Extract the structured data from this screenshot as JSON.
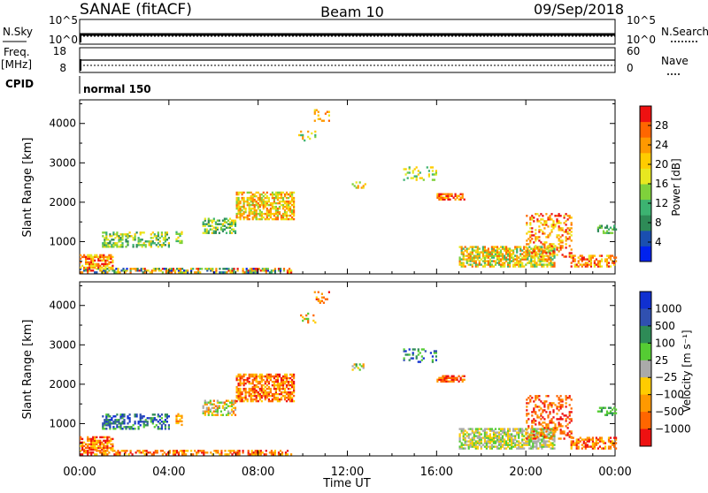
{
  "header": {
    "station": "SANAE (fitACF)",
    "beam": "Beam 10",
    "date": "09/Sep/2018"
  },
  "params": {
    "nsky_label": "N.Sky",
    "nsky_top": "10^5",
    "nsky_bottom": "10^0",
    "nsearch_label": "N.Search",
    "nsearch_top": "10^5",
    "nsearch_bottom": "10^0",
    "freq_label_1": "Freq.",
    "freq_label_2": "[MHz]",
    "freq_top": "18",
    "freq_bottom": "8",
    "nave_label": "Nave",
    "nave_top": "60",
    "nave_bottom": "0",
    "cpid_label": "CPID",
    "cpid_value": "normal 150"
  },
  "colors": {
    "power": [
      "#0022ee",
      "#1a4fb0",
      "#2e8b57",
      "#3cb371",
      "#7fd13b",
      "#e8e820",
      "#ffcc00",
      "#ff9900",
      "#ff6600",
      "#ee1111"
    ],
    "velocity": [
      "#1030d0",
      "#3050b0",
      "#2e8b57",
      "#55cc33",
      "#aaaaaa",
      "#ffcc00",
      "#ff9900",
      "#ff6600",
      "#ee1111"
    ]
  },
  "chart_data": [
    {
      "type": "heatmap",
      "name": "power",
      "ylabel": "Slant Range [km]",
      "xlim": [
        "00:00",
        "24:00"
      ],
      "ylim": [
        180,
        4600
      ],
      "yticks": [
        1000,
        2000,
        3000,
        4000
      ],
      "colorbar": {
        "label": "Power [dB]",
        "range": [
          0,
          32
        ],
        "ticks": [
          4,
          8,
          12,
          16,
          20,
          24,
          28
        ]
      },
      "patches": [
        {
          "t0": 0.0,
          "t1": 9.5,
          "r0": 200,
          "r1": 320,
          "c": [
            0,
            9
          ],
          "d": 0.55
        },
        {
          "t0": 0.0,
          "t1": 1.5,
          "r0": 320,
          "r1": 650,
          "c": [
            5,
            9
          ],
          "d": 0.7
        },
        {
          "t0": 1.0,
          "t1": 4.0,
          "r0": 850,
          "r1": 1250,
          "c": [
            2,
            6
          ],
          "d": 0.5
        },
        {
          "t0": 4.3,
          "t1": 4.6,
          "r0": 950,
          "r1": 1250,
          "c": [
            3,
            7
          ],
          "d": 0.6
        },
        {
          "t0": 5.5,
          "t1": 7.0,
          "r0": 1200,
          "r1": 1600,
          "c": [
            2,
            6
          ],
          "d": 0.6
        },
        {
          "t0": 7.0,
          "t1": 9.6,
          "r0": 1550,
          "r1": 2250,
          "c": [
            4,
            8
          ],
          "d": 0.65
        },
        {
          "t0": 10.5,
          "t1": 11.2,
          "r0": 4050,
          "r1": 4350,
          "c": [
            5,
            8
          ],
          "d": 0.3
        },
        {
          "t0": 9.8,
          "t1": 10.6,
          "r0": 3550,
          "r1": 3800,
          "c": [
            3,
            7
          ],
          "d": 0.2
        },
        {
          "t0": 12.2,
          "t1": 12.8,
          "r0": 2350,
          "r1": 2500,
          "c": [
            3,
            7
          ],
          "d": 0.4
        },
        {
          "t0": 14.5,
          "t1": 16.0,
          "r0": 2550,
          "r1": 2900,
          "c": [
            3,
            6
          ],
          "d": 0.25
        },
        {
          "t0": 16.0,
          "t1": 17.2,
          "r0": 2050,
          "r1": 2200,
          "c": [
            6,
            9
          ],
          "d": 0.6
        },
        {
          "t0": 17.0,
          "t1": 21.3,
          "r0": 350,
          "r1": 850,
          "c": [
            3,
            8
          ],
          "d": 0.7
        },
        {
          "t0": 20.0,
          "t1": 22.0,
          "r0": 600,
          "r1": 1700,
          "c": [
            5,
            9
          ],
          "d": 0.35
        },
        {
          "t0": 22.0,
          "t1": 24.0,
          "r0": 350,
          "r1": 650,
          "c": [
            5,
            9
          ],
          "d": 0.5
        },
        {
          "t0": 23.2,
          "t1": 24.0,
          "r0": 1200,
          "r1": 1400,
          "c": [
            2,
            4
          ],
          "d": 0.5
        }
      ]
    },
    {
      "type": "heatmap",
      "name": "velocity",
      "ylabel": "Slant Range [km]",
      "xlabel": "Time UT",
      "xlim": [
        "00:00",
        "24:00"
      ],
      "xticks": [
        "00:00",
        "04:00",
        "08:00",
        "12:00",
        "16:00",
        "20:00",
        "00:00"
      ],
      "ylim": [
        180,
        4600
      ],
      "yticks": [
        1000,
        2000,
        3000,
        4000
      ],
      "colorbar": {
        "label": "Velocity [m s⁻¹]",
        "ticks": [
          "1000",
          "500",
          "100",
          "25",
          "−25",
          "−100",
          "−500",
          "−1000"
        ]
      },
      "patches": [
        {
          "t0": 0.0,
          "t1": 9.5,
          "r0": 200,
          "r1": 320,
          "c": [
            5,
            8
          ],
          "d": 0.5
        },
        {
          "t0": 0.0,
          "t1": 1.5,
          "r0": 320,
          "r1": 650,
          "c": [
            5,
            8
          ],
          "d": 0.7
        },
        {
          "t0": 1.0,
          "t1": 4.0,
          "r0": 850,
          "r1": 1250,
          "c": [
            0,
            3
          ],
          "d": 0.5
        },
        {
          "t0": 4.3,
          "t1": 4.6,
          "r0": 950,
          "r1": 1250,
          "c": [
            5,
            7
          ],
          "d": 0.6
        },
        {
          "t0": 5.5,
          "t1": 7.0,
          "r0": 1200,
          "r1": 1600,
          "c": [
            3,
            7
          ],
          "d": 0.6
        },
        {
          "t0": 7.0,
          "t1": 9.6,
          "r0": 1550,
          "r1": 2250,
          "c": [
            5,
            8
          ],
          "d": 0.65
        },
        {
          "t0": 10.5,
          "t1": 11.2,
          "r0": 4050,
          "r1": 4350,
          "c": [
            5,
            8
          ],
          "d": 0.3
        },
        {
          "t0": 9.8,
          "t1": 10.6,
          "r0": 3550,
          "r1": 3800,
          "c": [
            3,
            7
          ],
          "d": 0.2
        },
        {
          "t0": 12.2,
          "t1": 12.8,
          "r0": 2350,
          "r1": 2500,
          "c": [
            2,
            6
          ],
          "d": 0.4
        },
        {
          "t0": 14.5,
          "t1": 16.0,
          "r0": 2550,
          "r1": 2900,
          "c": [
            0,
            3
          ],
          "d": 0.25
        },
        {
          "t0": 16.0,
          "t1": 17.2,
          "r0": 2050,
          "r1": 2200,
          "c": [
            6,
            8
          ],
          "d": 0.6
        },
        {
          "t0": 17.0,
          "t1": 21.3,
          "r0": 350,
          "r1": 850,
          "c": [
            3,
            5
          ],
          "d": 0.7
        },
        {
          "t0": 20.0,
          "t1": 22.0,
          "r0": 600,
          "r1": 1700,
          "c": [
            6,
            8
          ],
          "d": 0.35
        },
        {
          "t0": 22.0,
          "t1": 24.0,
          "r0": 350,
          "r1": 650,
          "c": [
            5,
            8
          ],
          "d": 0.5
        },
        {
          "t0": 23.2,
          "t1": 24.0,
          "r0": 1200,
          "r1": 1400,
          "c": [
            2,
            3
          ],
          "d": 0.5
        }
      ]
    }
  ]
}
